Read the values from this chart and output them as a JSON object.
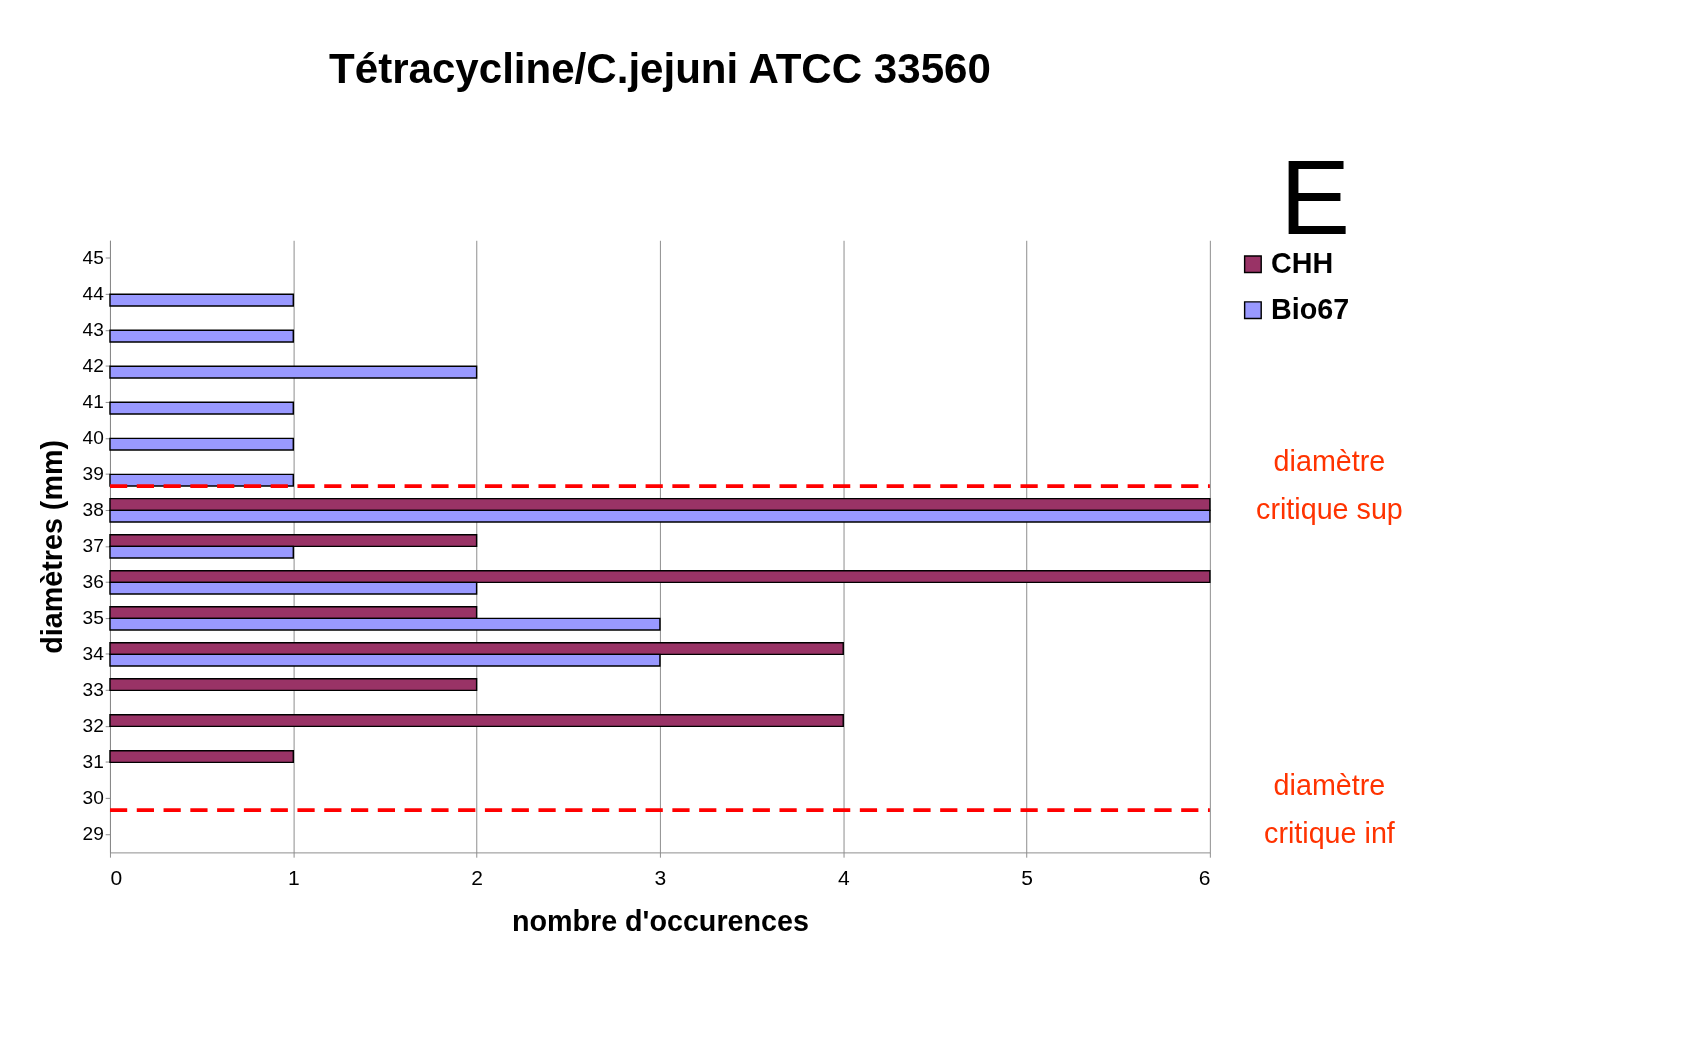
{
  "chart_data": {
    "type": "bar",
    "orientation": "horizontal",
    "title": "Tétracycline/C.jejuni  ATCC 33560",
    "xlabel": "nombre d'occurences",
    "ylabel": "diamètres (mm)",
    "categories": [
      "45",
      "44",
      "43",
      "42",
      "41",
      "40",
      "39",
      "38",
      "37",
      "36",
      "35",
      "34",
      "33",
      "32",
      "31",
      "30",
      "29"
    ],
    "series": [
      {
        "name": "CHH",
        "color": "#993366",
        "values": [
          null,
          null,
          null,
          null,
          null,
          null,
          null,
          6,
          2,
          6,
          2,
          4,
          2,
          4,
          1,
          null,
          null
        ]
      },
      {
        "name": "Bio67",
        "color": "#9999ff",
        "values": [
          null,
          1,
          1,
          2,
          1,
          1,
          1,
          6,
          1,
          2,
          3,
          3,
          null,
          null,
          null,
          null,
          null
        ]
      }
    ],
    "xlim": [
      0,
      6
    ],
    "xticks": [
      0,
      1,
      2,
      3,
      4,
      5,
      6
    ],
    "grid": "x",
    "legend": "top right",
    "ref_lines": [
      {
        "axis": "y",
        "value": "39",
        "label": "diamètre critique sup",
        "color": "#ff0000",
        "line_style": "dashed"
      },
      {
        "axis": "y",
        "value": "30",
        "label": "diamètre critique inf",
        "color": "#ff0000",
        "line_style": "dashed"
      }
    ],
    "annotations": [
      "E"
    ]
  }
}
